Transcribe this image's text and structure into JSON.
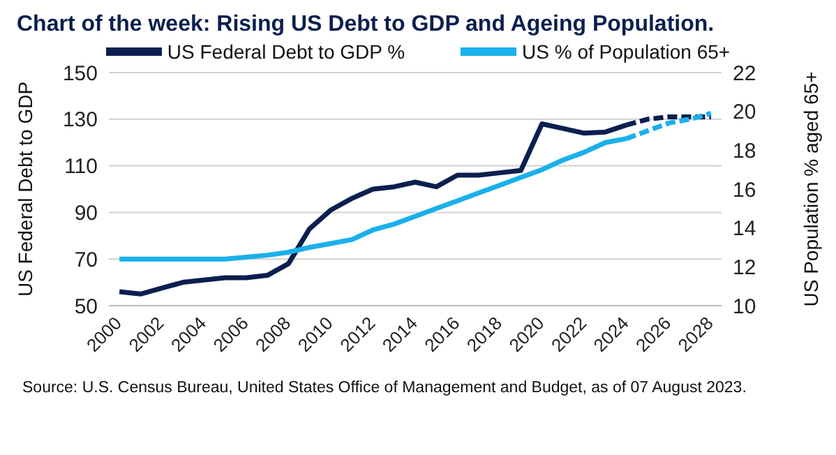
{
  "chart_data": {
    "type": "line",
    "title": "Chart of the week: Rising US Debt to GDP and Ageing Population.",
    "ylabel": "US Federal Debt to GDP",
    "y2label": "US Population % aged 65+",
    "xlim": [
      2000,
      2029
    ],
    "xticks": [
      2000,
      2002,
      2004,
      2006,
      2008,
      2010,
      2012,
      2014,
      2016,
      2018,
      2020,
      2022,
      2024,
      2026,
      2028
    ],
    "ylim": [
      50,
      150
    ],
    "yticks": [
      50,
      70,
      90,
      110,
      130,
      150
    ],
    "y2lim": [
      10,
      22
    ],
    "y2ticks": [
      10,
      12,
      14,
      16,
      18,
      20,
      22
    ],
    "grid": "y",
    "legend": "top",
    "line_style": "solid",
    "marker": "none",
    "series": [
      {
        "name": "US Federal Debt to GDP %",
        "color": "#0b1f4f",
        "x": [
          2000.5,
          2001.5,
          2002.5,
          2003.5,
          2004.5,
          2005.5,
          2006.5,
          2007.5,
          2008.5,
          2009.5,
          2010.5,
          2011.5,
          2012.5,
          2013.5,
          2014.5,
          2015.5,
          2016.5,
          2017.5,
          2018.5,
          2019.5,
          2020.5,
          2021.5,
          2022.5,
          2023.5,
          2024.5
        ],
        "values": [
          56,
          55,
          57.5,
          60,
          61,
          62,
          62,
          63,
          68,
          83,
          91,
          96,
          100,
          101,
          103,
          101,
          106,
          106,
          107,
          108,
          128,
          126,
          124,
          124.5,
          127.5
        ]
      },
      {
        "name": "US % of Population 65+",
        "color": "#1ab0ea",
        "axis": "y2",
        "x": [
          2000.5,
          2001.5,
          2002.5,
          2003.5,
          2004.5,
          2005.5,
          2006.5,
          2007.5,
          2008.5,
          2009.5,
          2010.5,
          2011.5,
          2012.5,
          2013.5,
          2014.5,
          2015.5,
          2016.5,
          2017.5,
          2018.5,
          2019.5,
          2020.5,
          2021.5,
          2022.5,
          2023.5,
          2024.5
        ],
        "values": [
          12.4,
          12.4,
          12.4,
          12.4,
          12.4,
          12.4,
          12.5,
          12.6,
          12.75,
          13,
          13.2,
          13.4,
          13.9,
          14.2,
          14.6,
          15,
          15.4,
          15.8,
          16.2,
          16.6,
          17,
          17.5,
          17.9,
          18.4,
          18.6
        ]
      },
      {
        "color": "#0b1f4f",
        "line_style": "dashed",
        "x": [
          2024.5,
          2025.5,
          2026.5,
          2027.5,
          2028.5
        ],
        "values": [
          127.5,
          130,
          131,
          131,
          131
        ]
      },
      {
        "color": "#1ab0ea",
        "axis": "y2",
        "line_style": "dashed",
        "x": [
          2024.5,
          2025.5,
          2026.5,
          2027.5,
          2028.5
        ],
        "values": [
          18.6,
          19,
          19.4,
          19.6,
          19.9
        ]
      }
    ],
    "annotations": [
      "Source: U.S. Census Bureau, United States Office of Management and Budget, as of 07 August 2023."
    ]
  }
}
